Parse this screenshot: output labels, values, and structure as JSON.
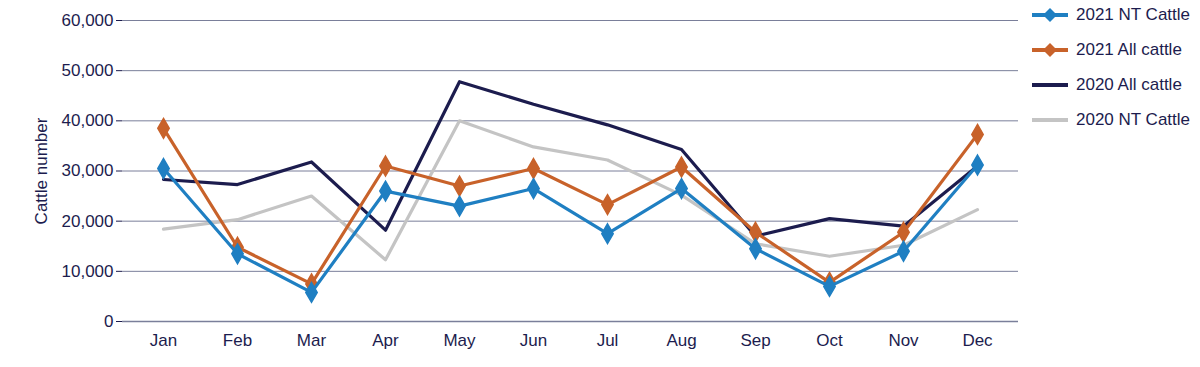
{
  "chart_data": {
    "type": "line",
    "y_label": "Cattle number",
    "categories": [
      "Jan",
      "Feb",
      "Mar",
      "Apr",
      "May",
      "Jun",
      "Jul",
      "Aug",
      "Sep",
      "Oct",
      "Nov",
      "Dec"
    ],
    "series": [
      {
        "name": "2021 NT Cattle",
        "color": "#1f7fc2",
        "marker": "diamond",
        "values": [
          30500,
          13500,
          5800,
          26000,
          23000,
          26500,
          17500,
          26500,
          14500,
          7000,
          14000,
          31200
        ]
      },
      {
        "name": "2021 All cattle",
        "color": "#c8622a",
        "marker": "diamond",
        "values": [
          38500,
          14800,
          7500,
          31000,
          27000,
          30500,
          23300,
          30800,
          17800,
          7800,
          17800,
          37300
        ]
      },
      {
        "name": "2020 All cattle",
        "color": "#1c1c4e",
        "marker": "none",
        "values": [
          28300,
          27300,
          31800,
          18200,
          47800,
          43300,
          39200,
          34300,
          17000,
          20500,
          19000,
          31000
        ]
      },
      {
        "name": "2020 NT Cattle",
        "color": "#c4c4c4",
        "marker": "none",
        "values": [
          18400,
          20300,
          25000,
          12300,
          40000,
          34800,
          32200,
          25200,
          15500,
          13000,
          15200,
          22300
        ]
      }
    ],
    "ylim": [
      0,
      60000
    ],
    "yticks": [
      0,
      {
        "value": 10000,
        "label": "10,000"
      },
      {
        "value": 20000,
        "label": "20,000"
      },
      {
        "value": 30000,
        "label": "30,000"
      },
      {
        "value": 40000,
        "label": "40,000"
      },
      {
        "value": 50000,
        "label": "50,000"
      },
      {
        "value": 60000,
        "label": "60,000"
      }
    ],
    "grid": true,
    "legend": "right"
  }
}
